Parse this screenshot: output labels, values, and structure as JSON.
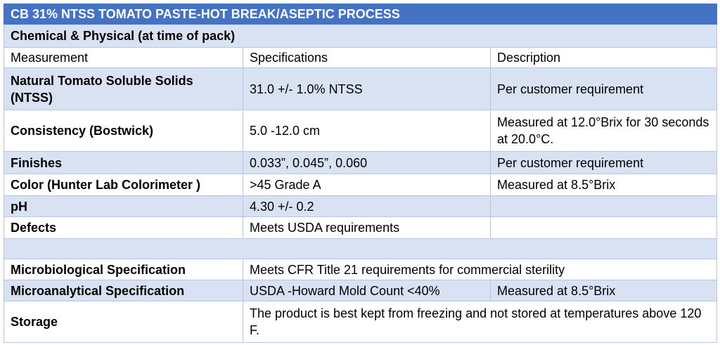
{
  "table": {
    "title": "CB 31% NTSS TOMATO PASTE-HOT BREAK/ASEPTIC PROCESS",
    "section": "Chemical & Physical (at time of pack)",
    "header": [
      "Measurement",
      "Specifications",
      "Description"
    ],
    "rows": [
      [
        "Natural Tomato Soluble Solids (NTSS)",
        "31.0 +/- 1.0% NTSS",
        "Per customer requirement"
      ],
      [
        "Consistency (Bostwick)",
        "5.0 -12.0 cm",
        "Measured at 12.0°Brix for 30 seconds at 20.0°C."
      ],
      [
        "Finishes",
        "0.033”, 0.045”, 0.060",
        "Per customer requirement"
      ],
      [
        "Color (Hunter Lab Colorimeter )",
        ">45 Grade A",
        "Measured at 8.5°Brix"
      ],
      [
        "pH",
        "4.30 +/- 0.2"
      ],
      [
        "Defects",
        "Meets USDA requirements"
      ]
    ],
    "rows2": [
      [
        "Microbiological Specification",
        "Meets CFR Title 21 requirements for commercial sterility"
      ],
      [
        "Microanalytical Specification",
        "USDA -Howard Mold Count <40%",
        "Measured at 8.5°Brix"
      ],
      [
        "Storage",
        "The product is best kept from freezing and not stored at temperatures above 120 F."
      ]
    ]
  }
}
